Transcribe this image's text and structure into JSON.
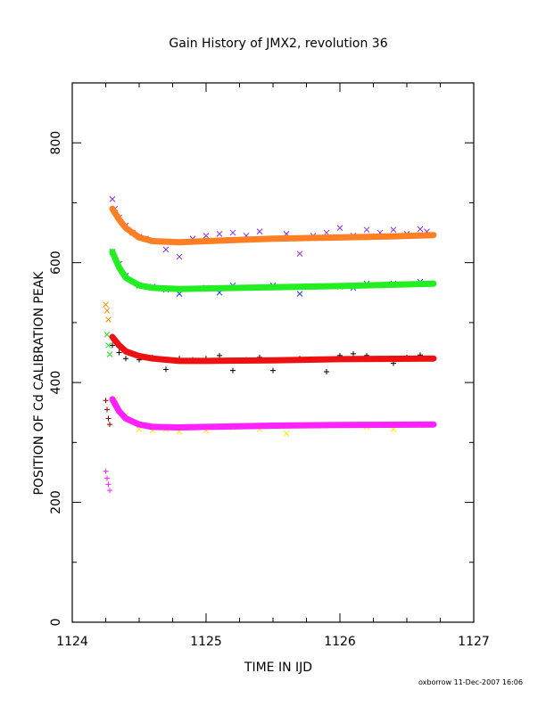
{
  "chart_data": {
    "type": "scatter",
    "title": "Gain History of JMX2, revolution 36",
    "xlabel": "TIME IN IJD",
    "ylabel": "POSITION OF Cd CALIBRATION PEAK",
    "footer": "oxborrow 11-Dec-2007 16:06",
    "xlim": [
      1124,
      1127
    ],
    "ylim": [
      0,
      900
    ],
    "xticks": [
      1124,
      1125,
      1126,
      1127
    ],
    "yticks": [
      0,
      200,
      400,
      600,
      800
    ],
    "grid": false,
    "series": [
      {
        "color": "#8a2be2",
        "marker": "x",
        "points": [
          [
            1124.3,
            706
          ],
          [
            1124.32,
            690
          ],
          [
            1124.35,
            675
          ],
          [
            1124.4,
            662
          ],
          [
            1124.45,
            650
          ],
          [
            1124.5,
            643
          ],
          [
            1124.55,
            640
          ],
          [
            1124.6,
            636
          ],
          [
            1124.7,
            622
          ],
          [
            1124.8,
            610
          ],
          [
            1124.9,
            640
          ],
          [
            1125.0,
            645
          ],
          [
            1125.1,
            648
          ],
          [
            1125.2,
            650
          ],
          [
            1125.3,
            645
          ],
          [
            1125.4,
            652
          ],
          [
            1125.5,
            640
          ],
          [
            1125.6,
            648
          ],
          [
            1125.7,
            615
          ],
          [
            1125.8,
            645
          ],
          [
            1125.9,
            650
          ],
          [
            1126.0,
            658
          ],
          [
            1126.1,
            645
          ],
          [
            1126.2,
            655
          ],
          [
            1126.3,
            650
          ],
          [
            1126.4,
            655
          ],
          [
            1126.5,
            648
          ],
          [
            1126.6,
            656
          ],
          [
            1126.65,
            652
          ]
        ]
      },
      {
        "color": "#1e40ff",
        "marker": "x",
        "points": [
          [
            1124.3,
            618
          ],
          [
            1124.35,
            598
          ],
          [
            1124.4,
            578
          ],
          [
            1124.5,
            562
          ],
          [
            1124.6,
            560
          ],
          [
            1124.7,
            555
          ],
          [
            1124.8,
            548
          ],
          [
            1125.0,
            558
          ],
          [
            1125.1,
            550
          ],
          [
            1125.2,
            562
          ],
          [
            1125.4,
            558
          ],
          [
            1125.5,
            562
          ],
          [
            1125.7,
            548
          ],
          [
            1125.8,
            560
          ],
          [
            1126.0,
            560
          ],
          [
            1126.1,
            558
          ],
          [
            1126.2,
            565
          ],
          [
            1126.4,
            565
          ],
          [
            1126.6,
            568
          ]
        ]
      },
      {
        "color": "#000000",
        "marker": "+",
        "points": [
          [
            1124.3,
            462
          ],
          [
            1124.35,
            450
          ],
          [
            1124.4,
            440
          ],
          [
            1124.5,
            438
          ],
          [
            1124.6,
            442
          ],
          [
            1124.7,
            422
          ],
          [
            1124.8,
            440
          ],
          [
            1124.9,
            438
          ],
          [
            1125.0,
            440
          ],
          [
            1125.1,
            445
          ],
          [
            1125.2,
            420
          ],
          [
            1125.3,
            438
          ],
          [
            1125.4,
            442
          ],
          [
            1125.5,
            420
          ],
          [
            1125.6,
            438
          ],
          [
            1125.7,
            440
          ],
          [
            1125.9,
            418
          ],
          [
            1126.0,
            445
          ],
          [
            1126.1,
            448
          ],
          [
            1126.2,
            445
          ],
          [
            1126.3,
            440
          ],
          [
            1126.4,
            432
          ],
          [
            1126.5,
            442
          ],
          [
            1126.6,
            446
          ]
        ]
      },
      {
        "color": "#ffe800",
        "marker": "x",
        "points": [
          [
            1124.32,
            372
          ],
          [
            1124.4,
            345
          ],
          [
            1124.5,
            322
          ],
          [
            1124.6,
            320
          ],
          [
            1124.7,
            322
          ],
          [
            1124.8,
            318
          ],
          [
            1125.0,
            320
          ],
          [
            1125.2,
            325
          ],
          [
            1125.4,
            322
          ],
          [
            1125.6,
            315
          ],
          [
            1125.8,
            328
          ],
          [
            1126.0,
            330
          ],
          [
            1126.2,
            326
          ],
          [
            1126.4,
            322
          ],
          [
            1126.6,
            330
          ]
        ]
      },
      {
        "color": "#ff8c00",
        "marker": "x",
        "points": [
          [
            1124.25,
            530
          ],
          [
            1124.26,
            520
          ],
          [
            1124.27,
            505
          ]
        ]
      },
      {
        "color": "#22dd22",
        "marker": "x",
        "points": [
          [
            1124.26,
            480
          ],
          [
            1124.27,
            462
          ],
          [
            1124.28,
            447
          ]
        ]
      },
      {
        "color": "#8b0000",
        "marker": "+",
        "points": [
          [
            1124.25,
            370
          ],
          [
            1124.26,
            355
          ],
          [
            1124.27,
            340
          ],
          [
            1124.28,
            330
          ]
        ]
      },
      {
        "color": "#ff22ff",
        "marker": "+",
        "points": [
          [
            1124.25,
            252
          ],
          [
            1124.26,
            240
          ],
          [
            1124.27,
            230
          ],
          [
            1124.28,
            220
          ]
        ]
      }
    ],
    "fits": [
      {
        "color": "#ff7f24",
        "x": [
          1124.3,
          1124.35,
          1124.4,
          1124.5,
          1124.6,
          1124.8,
          1125.0,
          1125.5,
          1126.0,
          1126.4,
          1126.7
        ],
        "y": [
          690,
          672,
          658,
          642,
          636,
          634,
          636,
          640,
          642,
          644,
          646
        ]
      },
      {
        "color": "#22ee22",
        "x": [
          1124.3,
          1124.35,
          1124.4,
          1124.5,
          1124.6,
          1124.8,
          1125.0,
          1125.5,
          1126.0,
          1126.7
        ],
        "y": [
          618,
          592,
          575,
          562,
          558,
          556,
          557,
          559,
          561,
          565
        ]
      },
      {
        "color": "#ee1111",
        "x": [
          1124.3,
          1124.35,
          1124.4,
          1124.5,
          1124.6,
          1124.8,
          1125.0,
          1125.5,
          1126.0,
          1126.7
        ],
        "y": [
          476,
          462,
          452,
          444,
          440,
          436,
          436,
          437,
          439,
          440
        ]
      },
      {
        "color": "#ff22ff",
        "x": [
          1124.3,
          1124.35,
          1124.4,
          1124.5,
          1124.6,
          1124.8,
          1125.0,
          1125.5,
          1126.0,
          1126.7
        ],
        "y": [
          372,
          352,
          340,
          330,
          326,
          325,
          326,
          328,
          329,
          330
        ]
      }
    ]
  }
}
